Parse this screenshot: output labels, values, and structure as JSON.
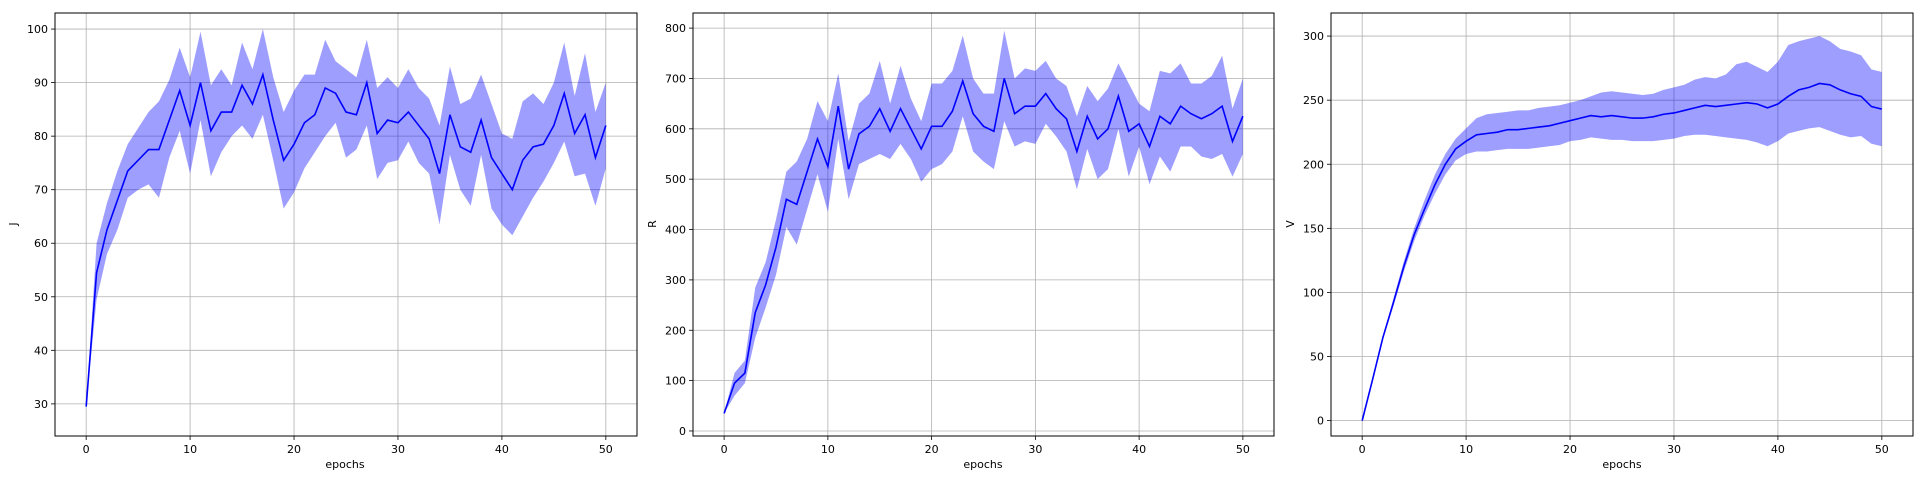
{
  "chart_data": [
    {
      "type": "line",
      "xlabel": "epochs",
      "ylabel": "J",
      "xlim": [
        -3,
        53
      ],
      "ylim": [
        24,
        103
      ],
      "xticks": [
        0,
        10,
        20,
        30,
        40,
        50
      ],
      "yticks": [
        30,
        40,
        50,
        60,
        70,
        80,
        90,
        100
      ],
      "grid": true,
      "x": [
        0,
        1,
        2,
        3,
        4,
        5,
        6,
        7,
        8,
        9,
        10,
        11,
        12,
        13,
        14,
        15,
        16,
        17,
        18,
        19,
        20,
        21,
        22,
        23,
        24,
        25,
        26,
        27,
        28,
        29,
        30,
        31,
        32,
        33,
        34,
        35,
        36,
        37,
        38,
        39,
        40,
        41,
        42,
        43,
        44,
        45,
        46,
        47,
        48,
        49,
        50
      ],
      "series": [
        {
          "mean": [
            29.5,
            54.5,
            62.5,
            68.0,
            73.5,
            75.5,
            77.5,
            77.5,
            83.0,
            88.5,
            82.0,
            90.0,
            81.0,
            84.5,
            84.5,
            89.5,
            86.0,
            91.5,
            83.0,
            75.5,
            78.5,
            82.5,
            84.0,
            89.0,
            88.0,
            84.5,
            84.0,
            90.0,
            80.5,
            83.0,
            82.5,
            84.5,
            82.0,
            79.5,
            73.0,
            84.0,
            78.0,
            77.0,
            83.0,
            76.0,
            73.0,
            70.0,
            75.5,
            78.0,
            78.5,
            82.0,
            88.0,
            80.5,
            84.0,
            76.0,
            82.0
          ],
          "upper": [
            29.5,
            60.0,
            67.5,
            73.5,
            78.5,
            81.5,
            84.5,
            86.5,
            90.5,
            96.5,
            91.0,
            99.5,
            89.5,
            92.5,
            89.5,
            97.5,
            92.5,
            100.0,
            91.0,
            84.5,
            88.5,
            91.5,
            91.5,
            98.0,
            94.0,
            92.5,
            91.0,
            98.0,
            89.0,
            91.0,
            89.0,
            92.5,
            89.0,
            87.0,
            82.0,
            93.0,
            86.0,
            87.0,
            91.5,
            86.0,
            80.5,
            79.5,
            86.5,
            88.0,
            86.0,
            90.0,
            97.5,
            87.5,
            95.5,
            84.5,
            90.0
          ],
          "lower": [
            29.5,
            49.5,
            58.0,
            62.5,
            68.5,
            70.0,
            71.0,
            68.5,
            76.0,
            81.0,
            73.0,
            83.0,
            72.5,
            77.0,
            80.0,
            82.0,
            79.5,
            84.0,
            75.5,
            66.5,
            69.5,
            74.0,
            77.0,
            80.0,
            82.5,
            76.0,
            77.5,
            82.0,
            72.0,
            75.0,
            75.5,
            79.0,
            75.0,
            73.0,
            63.5,
            76.5,
            70.0,
            67.0,
            76.5,
            66.5,
            63.5,
            61.5,
            65.0,
            68.5,
            71.5,
            75.0,
            79.0,
            72.5,
            73.0,
            67.0,
            74.0
          ]
        }
      ]
    },
    {
      "type": "line",
      "xlabel": "epochs",
      "ylabel": "R",
      "xlim": [
        -3,
        53
      ],
      "ylim": [
        -10,
        830
      ],
      "xticks": [
        0,
        10,
        20,
        30,
        40,
        50
      ],
      "yticks": [
        0,
        100,
        200,
        300,
        400,
        500,
        600,
        700,
        800
      ],
      "grid": true,
      "x": [
        0,
        1,
        2,
        3,
        4,
        5,
        6,
        7,
        8,
        9,
        10,
        11,
        12,
        13,
        14,
        15,
        16,
        17,
        18,
        19,
        20,
        21,
        22,
        23,
        24,
        25,
        26,
        27,
        28,
        29,
        30,
        31,
        32,
        33,
        34,
        35,
        36,
        37,
        38,
        39,
        40,
        41,
        42,
        43,
        44,
        45,
        46,
        47,
        48,
        49,
        50
      ],
      "series": [
        {
          "mean": [
            35,
            95,
            115,
            235,
            290,
            365,
            460,
            450,
            515,
            580,
            525,
            645,
            520,
            590,
            605,
            640,
            595,
            640,
            600,
            560,
            605,
            605,
            635,
            695,
            630,
            605,
            595,
            700,
            630,
            645,
            645,
            670,
            640,
            620,
            555,
            625,
            580,
            600,
            665,
            595,
            610,
            565,
            625,
            610,
            645,
            630,
            620,
            630,
            645,
            575,
            625
          ],
          "upper": [
            35,
            115,
            140,
            285,
            335,
            420,
            515,
            535,
            580,
            655,
            615,
            710,
            575,
            650,
            670,
            735,
            650,
            725,
            660,
            615,
            690,
            690,
            715,
            785,
            700,
            670,
            670,
            795,
            700,
            720,
            715,
            735,
            700,
            685,
            625,
            685,
            655,
            680,
            730,
            690,
            650,
            635,
            715,
            710,
            730,
            690,
            690,
            705,
            745,
            640,
            700
          ],
          "lower": [
            35,
            70,
            95,
            185,
            245,
            310,
            405,
            370,
            440,
            510,
            435,
            580,
            460,
            530,
            540,
            550,
            540,
            570,
            540,
            495,
            520,
            530,
            555,
            625,
            555,
            535,
            520,
            615,
            565,
            575,
            570,
            610,
            585,
            555,
            480,
            560,
            500,
            520,
            600,
            505,
            565,
            490,
            545,
            515,
            565,
            565,
            545,
            540,
            550,
            505,
            550
          ]
        }
      ]
    },
    {
      "type": "line",
      "xlabel": "epochs",
      "ylabel": "V",
      "xlim": [
        -3,
        53
      ],
      "ylim": [
        -12,
        318
      ],
      "xticks": [
        0,
        10,
        20,
        30,
        40,
        50
      ],
      "yticks": [
        0,
        50,
        100,
        150,
        200,
        250,
        300
      ],
      "grid": true,
      "x": [
        0,
        1,
        2,
        3,
        4,
        5,
        6,
        7,
        8,
        9,
        10,
        11,
        12,
        13,
        14,
        15,
        16,
        17,
        18,
        19,
        20,
        21,
        22,
        23,
        24,
        25,
        26,
        27,
        28,
        29,
        30,
        31,
        32,
        33,
        34,
        35,
        36,
        37,
        38,
        39,
        40,
        41,
        42,
        43,
        44,
        45,
        46,
        47,
        48,
        49,
        50
      ],
      "series": [
        {
          "mean": [
            0,
            32,
            65,
            92,
            120,
            145,
            165,
            184,
            200,
            212,
            218,
            223,
            224,
            225,
            227,
            227,
            228,
            229,
            230,
            232,
            234,
            236,
            238,
            237,
            238,
            237,
            236,
            236,
            237,
            239,
            240,
            242,
            244,
            246,
            245,
            246,
            247,
            248,
            247,
            244,
            247,
            253,
            258,
            260,
            263,
            262,
            258,
            255,
            253,
            245,
            243
          ],
          "upper": [
            0,
            33,
            66,
            95,
            124,
            150,
            172,
            192,
            208,
            220,
            228,
            236,
            239,
            240,
            241,
            242,
            242,
            244,
            245,
            246,
            248,
            250,
            253,
            256,
            257,
            256,
            255,
            254,
            255,
            258,
            260,
            262,
            266,
            268,
            267,
            270,
            278,
            280,
            276,
            272,
            280,
            293,
            296,
            298,
            300,
            296,
            290,
            288,
            285,
            274,
            272
          ],
          "lower": [
            0,
            31,
            63,
            89,
            116,
            140,
            160,
            177,
            192,
            203,
            208,
            210,
            210,
            211,
            212,
            212,
            212,
            213,
            214,
            215,
            218,
            219,
            221,
            220,
            219,
            219,
            218,
            218,
            218,
            219,
            220,
            222,
            223,
            223,
            222,
            221,
            220,
            219,
            217,
            214,
            218,
            224,
            226,
            228,
            229,
            226,
            223,
            221,
            222,
            216,
            214
          ]
        }
      ]
    }
  ]
}
